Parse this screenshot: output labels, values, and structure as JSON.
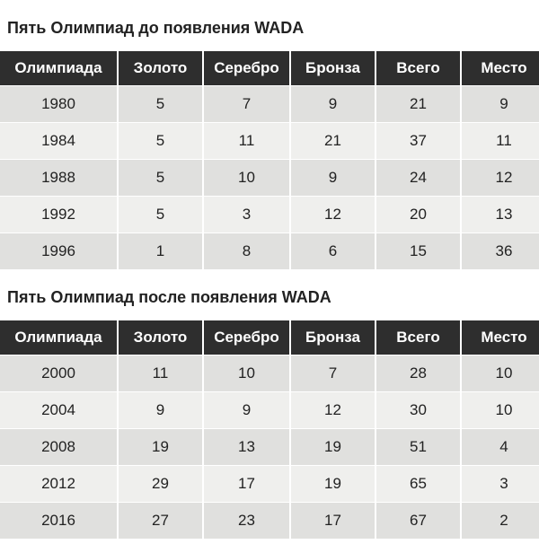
{
  "tables": [
    {
      "title": "Пять Олимпиад до появления WADA",
      "header": [
        "Олимпиада",
        "Золото",
        "Серебро",
        "Бронза",
        "Всего",
        "Место"
      ],
      "rows": [
        [
          1980,
          5,
          7,
          9,
          21,
          9
        ],
        [
          1984,
          5,
          11,
          21,
          37,
          11
        ],
        [
          1988,
          5,
          10,
          9,
          24,
          12
        ],
        [
          1992,
          5,
          3,
          12,
          20,
          13
        ],
        [
          1996,
          1,
          8,
          6,
          15,
          36
        ]
      ]
    },
    {
      "title": "Пять Олимпиад после появления WADA",
      "header": [
        "Олимпиада",
        "Золото",
        "Серебро",
        "Бронза",
        "Всего",
        "Место"
      ],
      "rows": [
        [
          2000,
          11,
          10,
          7,
          28,
          10
        ],
        [
          2004,
          9,
          9,
          12,
          30,
          10
        ],
        [
          2008,
          19,
          13,
          19,
          51,
          4
        ],
        [
          2012,
          29,
          17,
          19,
          65,
          3
        ],
        [
          2016,
          27,
          23,
          17,
          67,
          2
        ]
      ]
    }
  ]
}
